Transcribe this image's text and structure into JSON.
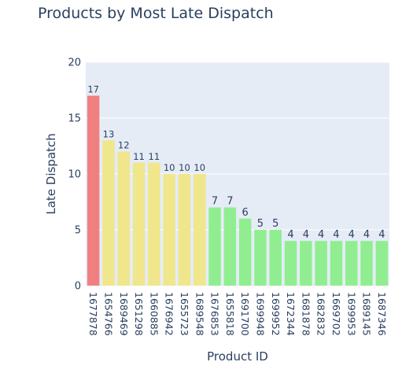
{
  "chart_data": {
    "type": "bar",
    "title": "Products by Most Late Dispatch",
    "xlabel": "Product ID",
    "ylabel": "Late Dispatch",
    "ylim": [
      0,
      20
    ],
    "yticks": [
      0,
      5,
      10,
      15,
      20
    ],
    "grid": true,
    "categories": [
      "1677878",
      "1654766",
      "1689469",
      "1651298",
      "1660885",
      "1676942",
      "1655723",
      "1689548",
      "1676853",
      "1655818",
      "1691700",
      "1699948",
      "1699952",
      "1672344",
      "1681878",
      "1682832",
      "1669702",
      "1699953",
      "1689145",
      "1687346"
    ],
    "values": [
      17,
      13,
      12,
      11,
      11,
      10,
      10,
      10,
      7,
      7,
      6,
      5,
      5,
      4,
      4,
      4,
      4,
      4,
      4,
      4
    ],
    "colors": {
      "high": "#f08080",
      "medium": "#f0e68c",
      "low": "#90ee90",
      "plot_background": "#e5ecf6",
      "text": "#2a3f5f"
    },
    "bar_color_groups": [
      "high",
      "medium",
      "medium",
      "medium",
      "medium",
      "medium",
      "medium",
      "medium",
      "low",
      "low",
      "low",
      "low",
      "low",
      "low",
      "low",
      "low",
      "low",
      "low",
      "low",
      "low"
    ]
  }
}
